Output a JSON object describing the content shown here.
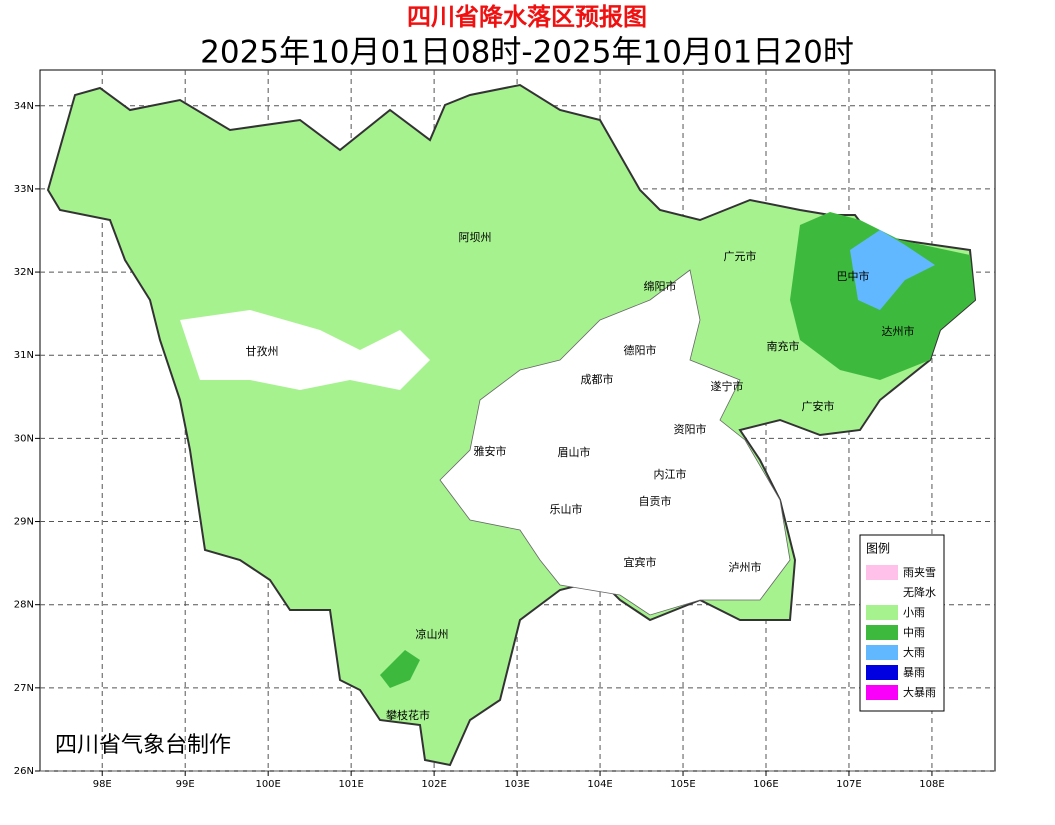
{
  "header": {
    "title": "四川省降水落区预报图",
    "subtitle": "2025年10月01日08时-2025年10月01日20时"
  },
  "map": {
    "xlim": [
      97.25,
      108.76
    ],
    "ylim": [
      26,
      34.43
    ],
    "xticks": [
      {
        "value": 98,
        "label": "98E"
      },
      {
        "value": 99,
        "label": "99E"
      },
      {
        "value": 100,
        "label": "100E"
      },
      {
        "value": 101,
        "label": "101E"
      },
      {
        "value": 102,
        "label": "102E"
      },
      {
        "value": 103,
        "label": "103E"
      },
      {
        "value": 104,
        "label": "104E"
      },
      {
        "value": 105,
        "label": "105E"
      },
      {
        "value": 106,
        "label": "106E"
      },
      {
        "value": 107,
        "label": "107E"
      },
      {
        "value": 108,
        "label": "108E"
      }
    ],
    "yticks": [
      {
        "value": 26,
        "label": "26N"
      },
      {
        "value": 27,
        "label": "27N"
      },
      {
        "value": 28,
        "label": "28N"
      },
      {
        "value": 29,
        "label": "29N"
      },
      {
        "value": 30,
        "label": "30N"
      },
      {
        "value": 31,
        "label": "31N"
      },
      {
        "value": 32,
        "label": "32N"
      },
      {
        "value": 33,
        "label": "33N"
      },
      {
        "value": 34,
        "label": "34N"
      }
    ],
    "grid": true,
    "cities": [
      "阿坝州",
      "甘孜州",
      "广元市",
      "巴中市",
      "绵阳市",
      "德阳市",
      "南充市",
      "达州市",
      "成都市",
      "遂宁市",
      "广安市",
      "资阳市",
      "雅安市",
      "眉山市",
      "内江市",
      "自贡市",
      "乐山市",
      "宜宾市",
      "泸州市",
      "凉山州",
      "攀枝花市"
    ]
  },
  "legend": {
    "title": "图例",
    "items": [
      {
        "name": "雨夹雪",
        "color": "#ffc0ea"
      },
      {
        "name": "无降水",
        "color": "#ffffff"
      },
      {
        "name": "小雨",
        "color": "#a6f28f"
      },
      {
        "name": "中雨",
        "color": "#3dba3d"
      },
      {
        "name": "大雨",
        "color": "#61b8ff"
      },
      {
        "name": "暴雨",
        "color": "#0000e1"
      },
      {
        "name": "大暴雨",
        "color": "#fa00fa"
      }
    ]
  },
  "credit": "四川省气象台制作"
}
